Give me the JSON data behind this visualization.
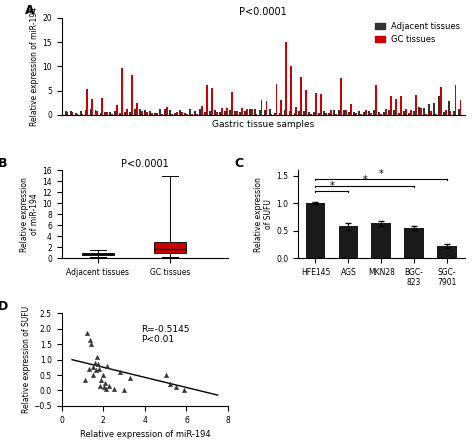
{
  "panel_A": {
    "title": "P<0.0001",
    "xlabel": "Gastric tissue samples",
    "ylabel": "Relative expression of miR-194",
    "ylim": [
      0,
      20
    ],
    "yticks": [
      0,
      5,
      10,
      15,
      20
    ],
    "n_samples": 80,
    "adjacent_color": "#333333",
    "gc_color": "#cc0000",
    "legend_labels": [
      "Adjacent tissues",
      "GC tissues"
    ]
  },
  "panel_B": {
    "title": "P<0.0001",
    "ylabel": "Relative expression\nof miR-194",
    "ylim": [
      0,
      16
    ],
    "yticks": [
      0,
      2,
      4,
      6,
      8,
      10,
      12,
      14,
      16
    ],
    "categories": [
      "Adjacent tissues",
      "GC tissues"
    ],
    "box_adj": {
      "median": 0.8,
      "q1": 0.6,
      "q3": 1.0,
      "whislo": 0.2,
      "whishi": 1.5
    },
    "box_gc": {
      "median": 1.7,
      "q1": 1.0,
      "q3": 3.0,
      "whislo": 0.15,
      "whishi": 15.0
    },
    "adj_color": "#555555",
    "gc_color": "#cc0000"
  },
  "panel_C": {
    "ylabel": "Relative expression\nof SUFU",
    "ylim": [
      0,
      1.6
    ],
    "yticks": [
      0.0,
      0.5,
      1.0,
      1.5
    ],
    "categories": [
      "HFE145",
      "AGS",
      "MKN28",
      "BGC-\n823",
      "SGC-\n7901"
    ],
    "values": [
      1.0,
      0.58,
      0.63,
      0.55,
      0.22
    ],
    "errors": [
      0.02,
      0.06,
      0.04,
      0.04,
      0.03
    ],
    "bar_color": "#1a1a1a",
    "sig_brackets": [
      [
        0,
        1,
        1.22,
        "*"
      ],
      [
        0,
        3,
        1.32,
        "*"
      ],
      [
        0,
        4,
        1.44,
        "*"
      ]
    ]
  },
  "panel_D": {
    "annotation": "R=-0.5145\nP<0.01",
    "xlabel": "Relative expression of miR-194",
    "ylabel": "Relative expression of SUFU",
    "xlim": [
      0,
      8
    ],
    "ylim": [
      -0.5,
      2.5
    ],
    "xticks": [
      0,
      2,
      4,
      6,
      8
    ],
    "yticks": [
      -0.5,
      0.0,
      0.5,
      1.0,
      1.5,
      2.0,
      2.5
    ],
    "scatter_x": [
      1.1,
      1.2,
      1.3,
      1.35,
      1.4,
      1.5,
      1.5,
      1.6,
      1.65,
      1.7,
      1.75,
      1.8,
      1.85,
      1.9,
      2.0,
      2.05,
      2.1,
      2.15,
      2.2,
      2.3,
      2.5,
      2.8,
      3.0,
      3.3,
      5.0,
      5.2,
      5.5,
      5.9
    ],
    "scatter_y": [
      0.35,
      1.85,
      0.7,
      1.65,
      1.5,
      0.75,
      0.5,
      0.9,
      0.65,
      1.1,
      0.85,
      0.7,
      0.15,
      0.35,
      0.5,
      0.1,
      0.25,
      0.05,
      0.8,
      0.15,
      0.05,
      0.6,
      0.0,
      0.4,
      0.5,
      0.2,
      0.1,
      0.0
    ],
    "line_x": [
      0.5,
      7.5
    ],
    "line_y": [
      1.0,
      -0.15
    ],
    "marker_color": "#333333",
    "line_color": "#000000"
  }
}
